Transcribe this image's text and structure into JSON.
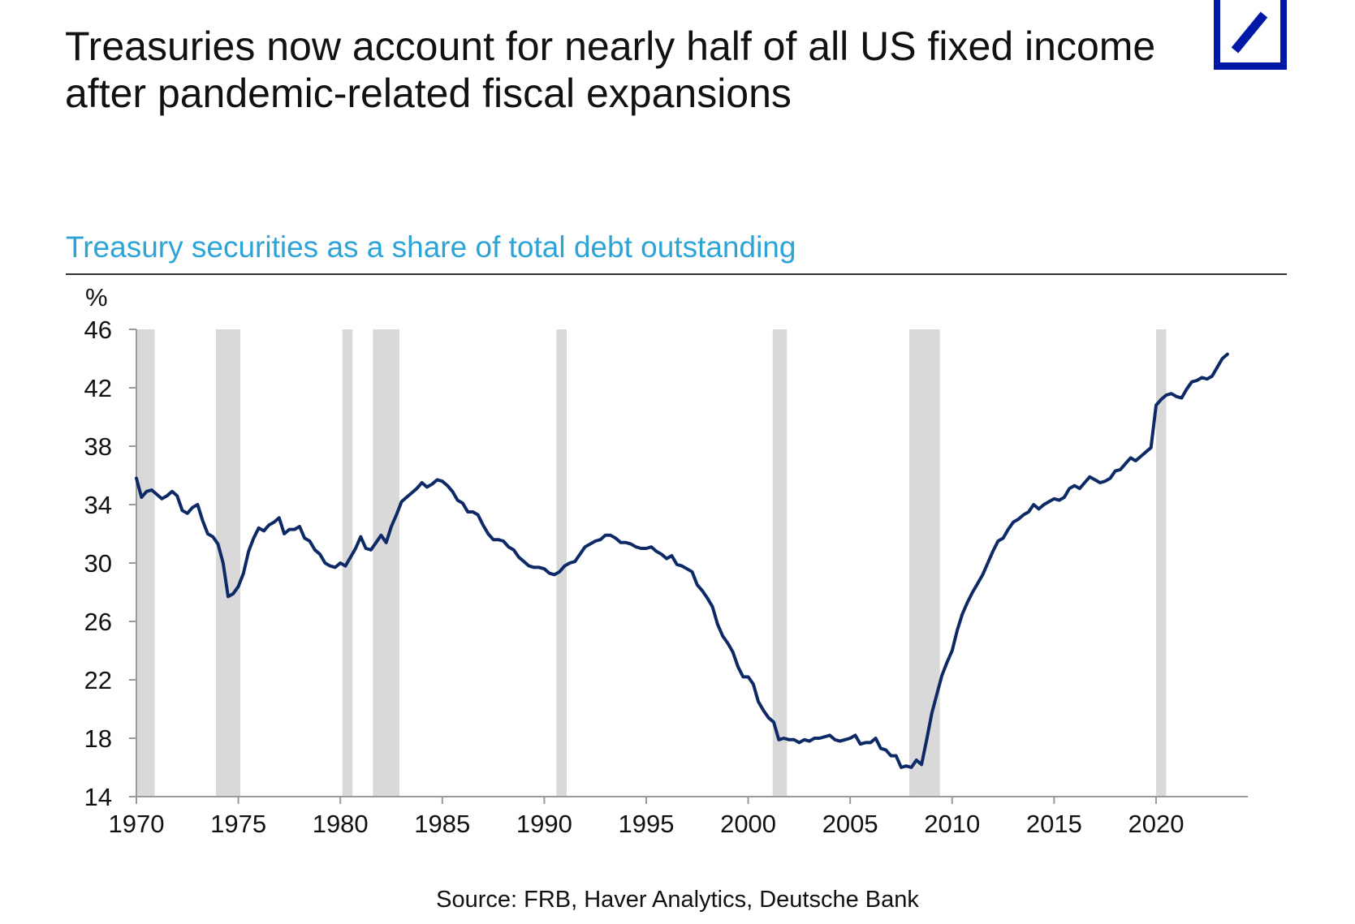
{
  "header": {
    "title": "Treasuries now account for nearly half of all US fixed income after pandemic-related fiscal expansions"
  },
  "source": "Source: FRB, Haver Analytics, Deutsche Bank",
  "colors": {
    "line": "#0d2a66",
    "recession_band": "#d9d9d9",
    "subtitle": "#2ea3d6",
    "logo": "#0018a8"
  },
  "logo": {
    "icon": "deutsche-bank-slash-logo"
  },
  "chart_data": {
    "type": "line",
    "title": "Treasury securities as a share of total debt outstanding",
    "ylabel": "%",
    "xlabel": "",
    "xlim": [
      1970,
      2024.5
    ],
    "ylim": [
      14,
      46
    ],
    "x_ticks": [
      "1970",
      "1975",
      "1980",
      "1985",
      "1990",
      "1995",
      "2000",
      "2005",
      "2010",
      "2015",
      "2020"
    ],
    "y_ticks": [
      "14",
      "18",
      "22",
      "26",
      "30",
      "34",
      "38",
      "42",
      "46"
    ],
    "grid": false,
    "legend": "none",
    "recession_bands": [
      [
        1970.0,
        1970.9
      ],
      [
        1973.9,
        1975.1
      ],
      [
        1980.1,
        1980.6
      ],
      [
        1981.6,
        1982.9
      ],
      [
        1990.6,
        1991.1
      ],
      [
        2001.2,
        2001.9
      ],
      [
        2007.9,
        2009.4
      ],
      [
        2020.0,
        2020.5
      ]
    ],
    "series": [
      {
        "values": [
          [
            1970.0,
            35.8
          ],
          [
            1970.25,
            34.5
          ],
          [
            1970.5,
            34.9
          ],
          [
            1970.75,
            35.0
          ],
          [
            1971.0,
            34.7
          ],
          [
            1971.25,
            34.4
          ],
          [
            1971.5,
            34.6
          ],
          [
            1971.75,
            34.9
          ],
          [
            1972.0,
            34.6
          ],
          [
            1972.25,
            33.6
          ],
          [
            1972.5,
            33.4
          ],
          [
            1972.75,
            33.8
          ],
          [
            1973.0,
            34.0
          ],
          [
            1973.25,
            32.9
          ],
          [
            1973.5,
            32.0
          ],
          [
            1973.75,
            31.8
          ],
          [
            1974.0,
            31.3
          ],
          [
            1974.25,
            30.0
          ],
          [
            1974.5,
            27.7
          ],
          [
            1974.75,
            27.9
          ],
          [
            1975.0,
            28.4
          ],
          [
            1975.25,
            29.3
          ],
          [
            1975.5,
            30.8
          ],
          [
            1975.75,
            31.7
          ],
          [
            1976.0,
            32.4
          ],
          [
            1976.25,
            32.2
          ],
          [
            1976.5,
            32.6
          ],
          [
            1976.75,
            32.8
          ],
          [
            1977.0,
            33.1
          ],
          [
            1977.25,
            32.0
          ],
          [
            1977.5,
            32.3
          ],
          [
            1977.75,
            32.3
          ],
          [
            1978.0,
            32.5
          ],
          [
            1978.25,
            31.7
          ],
          [
            1978.5,
            31.5
          ],
          [
            1978.75,
            30.9
          ],
          [
            1979.0,
            30.6
          ],
          [
            1979.25,
            30.0
          ],
          [
            1979.5,
            29.8
          ],
          [
            1979.75,
            29.7
          ],
          [
            1980.0,
            30.0
          ],
          [
            1980.25,
            29.8
          ],
          [
            1980.5,
            30.4
          ],
          [
            1980.75,
            31.0
          ],
          [
            1981.0,
            31.8
          ],
          [
            1981.25,
            31.0
          ],
          [
            1981.5,
            30.9
          ],
          [
            1981.75,
            31.4
          ],
          [
            1982.0,
            31.9
          ],
          [
            1982.25,
            31.4
          ],
          [
            1982.5,
            32.5
          ],
          [
            1982.75,
            33.3
          ],
          [
            1983.0,
            34.2
          ],
          [
            1983.25,
            34.5
          ],
          [
            1983.5,
            34.8
          ],
          [
            1983.75,
            35.1
          ],
          [
            1984.0,
            35.5
          ],
          [
            1984.25,
            35.2
          ],
          [
            1984.5,
            35.4
          ],
          [
            1984.75,
            35.7
          ],
          [
            1985.0,
            35.6
          ],
          [
            1985.25,
            35.3
          ],
          [
            1985.5,
            34.9
          ],
          [
            1985.75,
            34.3
          ],
          [
            1986.0,
            34.1
          ],
          [
            1986.25,
            33.5
          ],
          [
            1986.5,
            33.5
          ],
          [
            1986.75,
            33.3
          ],
          [
            1987.0,
            32.6
          ],
          [
            1987.25,
            32.0
          ],
          [
            1987.5,
            31.6
          ],
          [
            1987.75,
            31.6
          ],
          [
            1988.0,
            31.5
          ],
          [
            1988.25,
            31.1
          ],
          [
            1988.5,
            30.9
          ],
          [
            1988.75,
            30.4
          ],
          [
            1989.0,
            30.1
          ],
          [
            1989.25,
            29.8
          ],
          [
            1989.5,
            29.7
          ],
          [
            1989.75,
            29.7
          ],
          [
            1990.0,
            29.6
          ],
          [
            1990.25,
            29.3
          ],
          [
            1990.5,
            29.2
          ],
          [
            1990.75,
            29.4
          ],
          [
            1991.0,
            29.8
          ],
          [
            1991.25,
            30.0
          ],
          [
            1991.5,
            30.1
          ],
          [
            1991.75,
            30.6
          ],
          [
            1992.0,
            31.1
          ],
          [
            1992.25,
            31.3
          ],
          [
            1992.5,
            31.5
          ],
          [
            1992.75,
            31.6
          ],
          [
            1993.0,
            31.9
          ],
          [
            1993.25,
            31.9
          ],
          [
            1993.5,
            31.7
          ],
          [
            1993.75,
            31.4
          ],
          [
            1994.0,
            31.4
          ],
          [
            1994.25,
            31.3
          ],
          [
            1994.5,
            31.1
          ],
          [
            1994.75,
            31.0
          ],
          [
            1995.0,
            31.0
          ],
          [
            1995.25,
            31.1
          ],
          [
            1995.5,
            30.8
          ],
          [
            1995.75,
            30.6
          ],
          [
            1996.0,
            30.3
          ],
          [
            1996.25,
            30.5
          ],
          [
            1996.5,
            29.9
          ],
          [
            1996.75,
            29.8
          ],
          [
            1997.0,
            29.6
          ],
          [
            1997.25,
            29.4
          ],
          [
            1997.5,
            28.5
          ],
          [
            1997.75,
            28.1
          ],
          [
            1998.0,
            27.6
          ],
          [
            1998.25,
            27.0
          ],
          [
            1998.5,
            25.8
          ],
          [
            1998.75,
            25.0
          ],
          [
            1999.0,
            24.5
          ],
          [
            1999.25,
            23.9
          ],
          [
            1999.5,
            22.9
          ],
          [
            1999.75,
            22.2
          ],
          [
            2000.0,
            22.2
          ],
          [
            2000.25,
            21.7
          ],
          [
            2000.5,
            20.5
          ],
          [
            2000.75,
            19.9
          ],
          [
            2001.0,
            19.4
          ],
          [
            2001.25,
            19.1
          ],
          [
            2001.5,
            17.9
          ],
          [
            2001.75,
            18.0
          ],
          [
            2002.0,
            17.9
          ],
          [
            2002.25,
            17.9
          ],
          [
            2002.5,
            17.7
          ],
          [
            2002.75,
            17.9
          ],
          [
            2003.0,
            17.8
          ],
          [
            2003.25,
            18.0
          ],
          [
            2003.5,
            18.0
          ],
          [
            2003.75,
            18.1
          ],
          [
            2004.0,
            18.2
          ],
          [
            2004.25,
            17.9
          ],
          [
            2004.5,
            17.8
          ],
          [
            2004.75,
            17.9
          ],
          [
            2005.0,
            18.0
          ],
          [
            2005.25,
            18.2
          ],
          [
            2005.5,
            17.6
          ],
          [
            2005.75,
            17.7
          ],
          [
            2006.0,
            17.7
          ],
          [
            2006.25,
            18.0
          ],
          [
            2006.5,
            17.3
          ],
          [
            2006.75,
            17.2
          ],
          [
            2007.0,
            16.8
          ],
          [
            2007.25,
            16.8
          ],
          [
            2007.5,
            16.0
          ],
          [
            2007.75,
            16.1
          ],
          [
            2008.0,
            16.0
          ],
          [
            2008.25,
            16.5
          ],
          [
            2008.5,
            16.2
          ],
          [
            2008.75,
            17.9
          ],
          [
            2009.0,
            19.7
          ],
          [
            2009.25,
            21.0
          ],
          [
            2009.5,
            22.3
          ],
          [
            2009.75,
            23.2
          ],
          [
            2010.0,
            24.0
          ],
          [
            2010.25,
            25.4
          ],
          [
            2010.5,
            26.5
          ],
          [
            2010.75,
            27.3
          ],
          [
            2011.0,
            28.0
          ],
          [
            2011.25,
            28.6
          ],
          [
            2011.5,
            29.2
          ],
          [
            2011.75,
            30.0
          ],
          [
            2012.0,
            30.8
          ],
          [
            2012.25,
            31.5
          ],
          [
            2012.5,
            31.7
          ],
          [
            2012.75,
            32.3
          ],
          [
            2013.0,
            32.8
          ],
          [
            2013.25,
            33.0
          ],
          [
            2013.5,
            33.3
          ],
          [
            2013.75,
            33.5
          ],
          [
            2014.0,
            34.0
          ],
          [
            2014.25,
            33.7
          ],
          [
            2014.5,
            34.0
          ],
          [
            2014.75,
            34.2
          ],
          [
            2015.0,
            34.4
          ],
          [
            2015.25,
            34.3
          ],
          [
            2015.5,
            34.5
          ],
          [
            2015.75,
            35.1
          ],
          [
            2016.0,
            35.3
          ],
          [
            2016.25,
            35.1
          ],
          [
            2016.5,
            35.5
          ],
          [
            2016.75,
            35.9
          ],
          [
            2017.0,
            35.7
          ],
          [
            2017.25,
            35.5
          ],
          [
            2017.5,
            35.6
          ],
          [
            2017.75,
            35.8
          ],
          [
            2018.0,
            36.3
          ],
          [
            2018.25,
            36.4
          ],
          [
            2018.5,
            36.8
          ],
          [
            2018.75,
            37.2
          ],
          [
            2019.0,
            37.0
          ],
          [
            2019.25,
            37.3
          ],
          [
            2019.5,
            37.6
          ],
          [
            2019.75,
            37.9
          ],
          [
            2020.0,
            40.8
          ],
          [
            2020.25,
            41.2
          ],
          [
            2020.5,
            41.5
          ],
          [
            2020.75,
            41.6
          ],
          [
            2021.0,
            41.4
          ],
          [
            2021.25,
            41.3
          ],
          [
            2021.5,
            41.9
          ],
          [
            2021.75,
            42.4
          ],
          [
            2022.0,
            42.5
          ],
          [
            2022.25,
            42.7
          ],
          [
            2022.5,
            42.6
          ],
          [
            2022.75,
            42.8
          ],
          [
            2023.0,
            43.4
          ],
          [
            2023.25,
            44.0
          ],
          [
            2023.5,
            44.3
          ]
        ]
      }
    ]
  }
}
